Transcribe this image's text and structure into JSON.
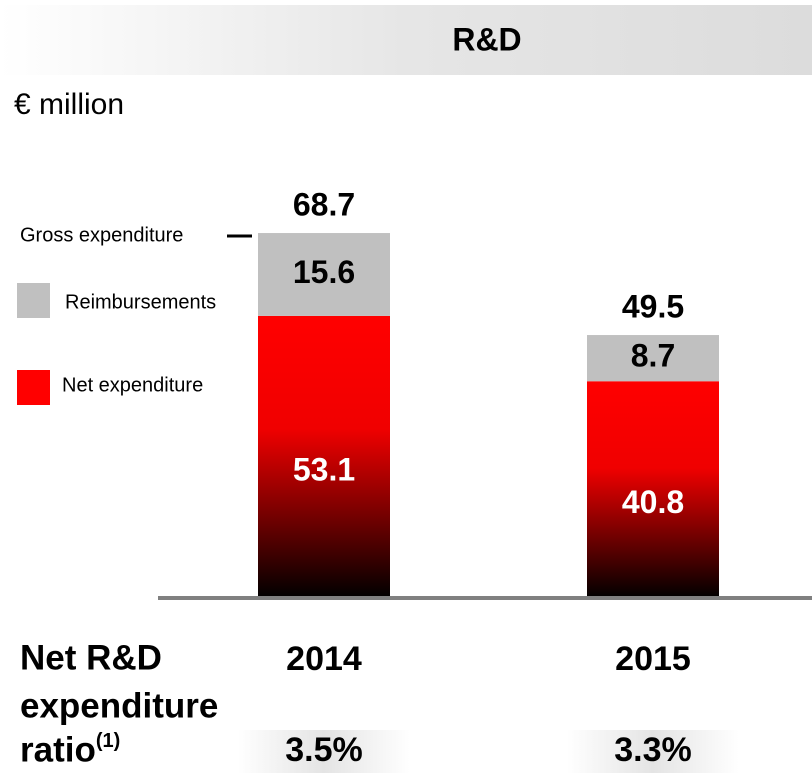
{
  "chart_data": {
    "type": "stacked_bar",
    "title": "R&D",
    "unit_label": "€ million",
    "categories": [
      "2014",
      "2015"
    ],
    "series": [
      {
        "name": "Net expenditure",
        "color": "#ff0000",
        "values": [
          53.1,
          40.8
        ]
      },
      {
        "name": "Reimbursements",
        "color": "#c0c0c0",
        "values": [
          15.6,
          8.7
        ]
      }
    ],
    "totals_label": "Gross expenditure",
    "totals": [
      68.7,
      49.5
    ],
    "ylim": [
      0,
      80
    ],
    "ratio": {
      "label": "Net R&D expenditure ratio",
      "note": "(1)",
      "values": [
        3.5,
        3.3
      ],
      "value_labels": [
        "3.5%",
        "3.3%"
      ]
    }
  }
}
